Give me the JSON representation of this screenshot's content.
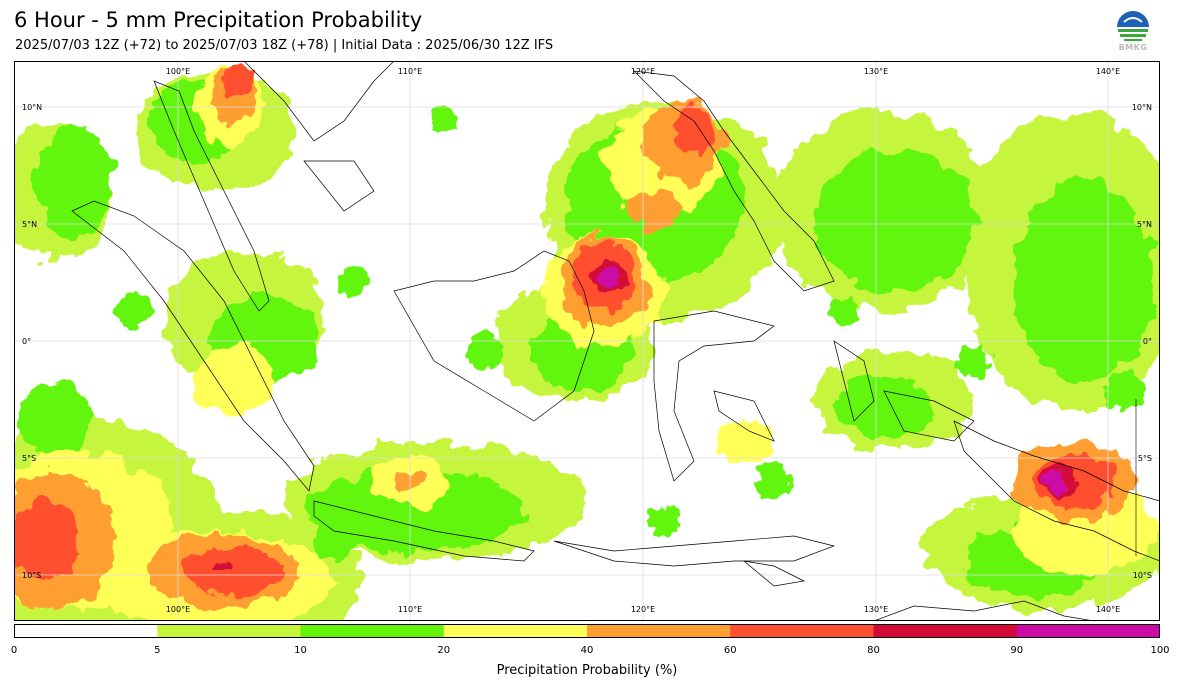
{
  "header": {
    "title": "6 Hour - 5 mm Precipitation Probability",
    "subtitle": "2025/07/03 12Z (+72) to 2025/07/03 18Z (+78) | Initial Data : 2025/06/30 12Z IFS"
  },
  "logo": {
    "text": "BMKG",
    "icon": "bmkg-logo-icon"
  },
  "map": {
    "lon_range": [
      91,
      144
    ],
    "lat_range": [
      -12,
      12
    ],
    "lon_labels": [
      "100°E",
      "110°E",
      "120°E",
      "130°E",
      "140°E"
    ],
    "lat_labels": [
      "10°N",
      "5°N",
      "0°",
      "5°S",
      "10°S"
    ]
  },
  "legend": {
    "title": "Precipitation Probability (%)",
    "ticks": [
      "0",
      "5",
      "10",
      "20",
      "40",
      "60",
      "80",
      "90",
      "100"
    ],
    "colors": [
      "#ffffff",
      "#c6f53c",
      "#62f50a",
      "#ffff59",
      "#ff9f33",
      "#ff4f2f",
      "#d10a38",
      "#cc0aa5"
    ]
  }
}
